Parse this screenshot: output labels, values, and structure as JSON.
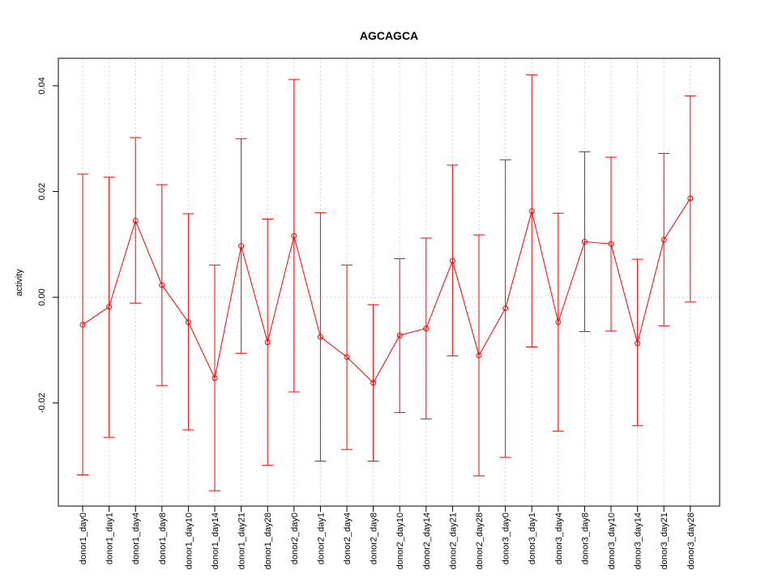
{
  "chart_data": {
    "type": "line",
    "title": "AGCAGCA",
    "xlabel": "",
    "ylabel": "activity",
    "categories": [
      "donor1_day0",
      "donor1_day1",
      "donor1_day4",
      "donor1_day8",
      "donor1_day10",
      "donor1_day14",
      "donor1_day21",
      "donor1_day28",
      "donor2_day0",
      "donor2_day1",
      "donor2_day4",
      "donor2_day8",
      "donor2_day10",
      "donor2_day14",
      "donor2_day21",
      "donor2_day28",
      "donor3_day0",
      "donor3_day1",
      "donor3_day4",
      "donor3_day8",
      "donor3_day10",
      "donor3_day14",
      "donor3_day21",
      "donor3_day28"
    ],
    "values": [
      -0.0052,
      -0.0018,
      0.0145,
      0.0023,
      -0.0047,
      -0.0153,
      0.0097,
      -0.0085,
      0.0116,
      -0.0075,
      -0.0113,
      -0.0162,
      -0.0072,
      -0.0059,
      0.0069,
      -0.011,
      -0.0021,
      0.0163,
      -0.0047,
      0.0105,
      0.0101,
      -0.0087,
      0.0109,
      0.0187
    ],
    "upper": [
      0.0233,
      0.0227,
      0.0302,
      0.0213,
      0.0158,
      0.0061,
      0.03,
      0.0148,
      0.0412,
      0.016,
      0.0061,
      -0.0014,
      0.0073,
      0.0112,
      0.025,
      0.0118,
      0.026,
      0.0421,
      0.0159,
      0.0275,
      0.0265,
      0.0072,
      0.0272,
      0.0381
    ],
    "lower": [
      -0.0336,
      -0.0265,
      -0.0011,
      -0.0167,
      -0.0251,
      -0.0366,
      -0.0106,
      -0.0318,
      -0.0179,
      -0.031,
      -0.0288,
      -0.031,
      -0.0218,
      -0.023,
      -0.0111,
      -0.0338,
      -0.0303,
      -0.0094,
      -0.0253,
      -0.0065,
      -0.0064,
      -0.0243,
      -0.0054,
      -0.0009
    ],
    "yticks": [
      -0.02,
      0.0,
      0.02,
      0.04
    ],
    "ytick_labels": [
      "-0.02",
      "0.00",
      "0.02",
      "0.04"
    ],
    "ylim": [
      -0.0395,
      0.0452
    ],
    "grid": true,
    "color": "#ff0000",
    "grid_color": "#d3d3d3"
  }
}
